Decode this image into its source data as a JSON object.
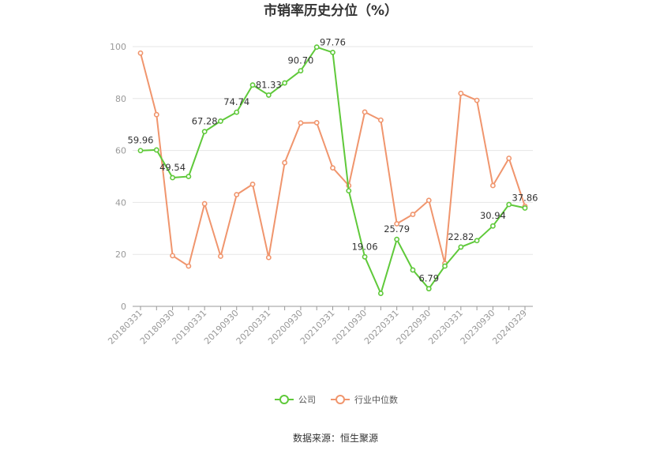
{
  "chart_data": {
    "type": "line",
    "title": "市销率历史分位（%）",
    "xlabel": "",
    "ylabel": "",
    "ylim": [
      0,
      100
    ],
    "yticks": [
      0,
      20,
      40,
      60,
      80,
      100
    ],
    "grid": true,
    "legend_position": "bottom",
    "x": [
      "20180331",
      "20180630",
      "20180930",
      "20181231",
      "20190331",
      "20190630",
      "20190930",
      "20191231",
      "20200331",
      "20200630",
      "20200930",
      "20201231",
      "20210331",
      "20210630",
      "20210930",
      "20211231",
      "20220331",
      "20220630",
      "20220930",
      "20221231",
      "20230331",
      "20230630",
      "20230930",
      "20231231",
      "20240329"
    ],
    "x_tick_labels": [
      "20180331",
      "20180930",
      "20190331",
      "20190930",
      "20200331",
      "20200930",
      "20210331",
      "20210930",
      "20220331",
      "20220930",
      "20230331",
      "20230930",
      "20240329"
    ],
    "series": [
      {
        "name": "公司",
        "color": "#5fc93a",
        "values": [
          59.96,
          60.2,
          49.54,
          50.0,
          67.28,
          71.3,
          74.74,
          85.2,
          81.33,
          86.0,
          90.7,
          99.8,
          97.76,
          44.5,
          19.06,
          5.0,
          25.79,
          14.0,
          6.79,
          15.5,
          22.82,
          25.3,
          30.94,
          39.2,
          37.86
        ],
        "labels": [
          "59.96",
          "",
          "49.54",
          "",
          "67.28",
          "",
          "74.74",
          "",
          "81.33",
          "",
          "90.70",
          "",
          "97.76",
          "",
          "19.06",
          "",
          "25.79",
          "",
          "6.79",
          "",
          "22.82",
          "",
          "30.94",
          "",
          "37.86"
        ]
      },
      {
        "name": "行业中位数",
        "color": "#f0956d",
        "values": [
          97.5,
          73.8,
          19.5,
          15.5,
          39.5,
          19.3,
          43.0,
          47.0,
          18.8,
          55.3,
          70.6,
          70.7,
          53.3,
          46.5,
          74.8,
          71.7,
          31.8,
          35.4,
          40.8,
          16.5,
          82.0,
          79.3,
          46.5,
          57.0,
          38.5
        ],
        "labels": []
      }
    ]
  },
  "source_text": "数据来源：恒生聚源"
}
